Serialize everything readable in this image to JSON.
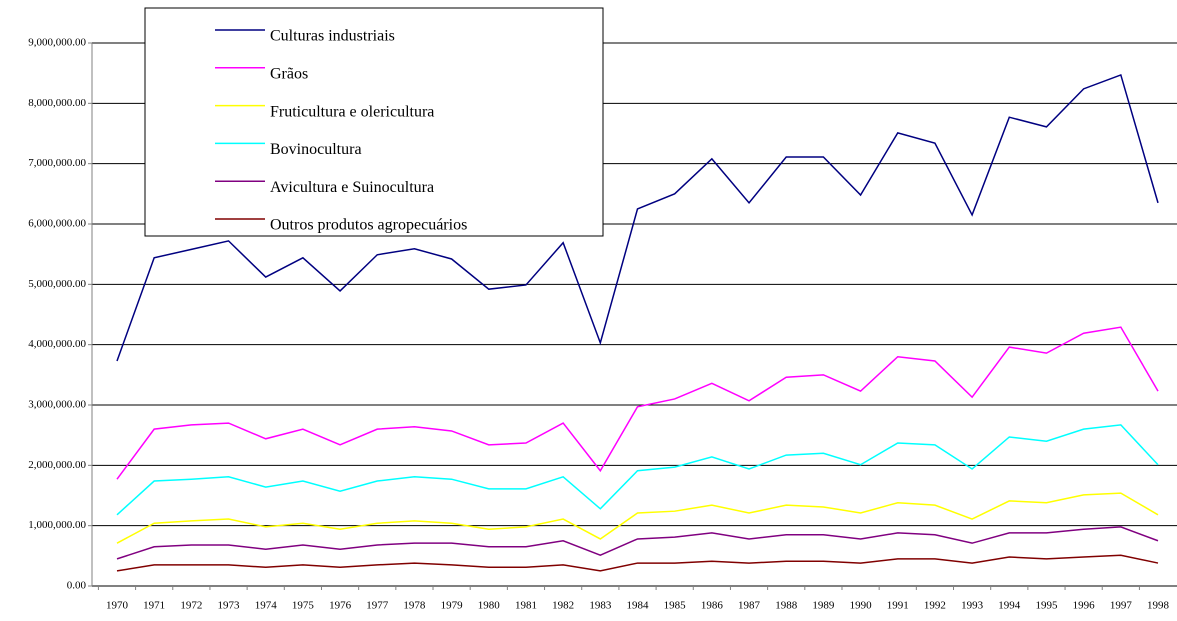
{
  "chart_data": {
    "type": "line",
    "categories": [
      "1970",
      "1971",
      "1972",
      "1973",
      "1974",
      "1975",
      "1976",
      "1977",
      "1978",
      "1979",
      "1980",
      "1981",
      "1982",
      "1983",
      "1984",
      "1985",
      "1986",
      "1987",
      "1988",
      "1989",
      "1990",
      "1991",
      "1992",
      "1993",
      "1994",
      "1995",
      "1996",
      "1997",
      "1998"
    ],
    "series": [
      {
        "name": "Culturas industriais",
        "color": "#000080",
        "values": [
          3730000,
          5440000,
          5580000,
          5720000,
          5120000,
          5440000,
          4890000,
          5490000,
          5590000,
          5420000,
          4920000,
          4990000,
          5690000,
          4030000,
          6250000,
          6500000,
          7080000,
          6350000,
          7110000,
          7110000,
          6480000,
          7510000,
          7340000,
          6150000,
          7770000,
          7610000,
          8240000,
          8470000,
          6350000
        ]
      },
      {
        "name": "Grãos",
        "color": "#ff00ff",
        "values": [
          1770000,
          2600000,
          2670000,
          2700000,
          2440000,
          2600000,
          2340000,
          2600000,
          2640000,
          2570000,
          2340000,
          2370000,
          2700000,
          1910000,
          2970000,
          3100000,
          3360000,
          3070000,
          3460000,
          3500000,
          3230000,
          3800000,
          3730000,
          3130000,
          3960000,
          3860000,
          4190000,
          4290000,
          3230000
        ]
      },
      {
        "name": "Fruticultura e olericultura",
        "color": "#ffff00",
        "values": [
          710000,
          1040000,
          1080000,
          1110000,
          980000,
          1040000,
          940000,
          1040000,
          1080000,
          1040000,
          940000,
          980000,
          1110000,
          780000,
          1210000,
          1240000,
          1340000,
          1210000,
          1340000,
          1310000,
          1210000,
          1380000,
          1340000,
          1110000,
          1410000,
          1380000,
          1510000,
          1540000,
          1180000
        ]
      },
      {
        "name": "Bovinocultura",
        "color": "#00ffff",
        "values": [
          1180000,
          1740000,
          1770000,
          1810000,
          1640000,
          1740000,
          1570000,
          1740000,
          1810000,
          1770000,
          1610000,
          1610000,
          1810000,
          1280000,
          1910000,
          1970000,
          2140000,
          1940000,
          2170000,
          2200000,
          2010000,
          2370000,
          2340000,
          1940000,
          2470000,
          2400000,
          2600000,
          2670000,
          2010000
        ]
      },
      {
        "name": "Avicultura e Suinocultura",
        "color": "#800080",
        "values": [
          450000,
          650000,
          680000,
          680000,
          610000,
          680000,
          610000,
          680000,
          710000,
          710000,
          650000,
          650000,
          750000,
          510000,
          780000,
          810000,
          880000,
          780000,
          850000,
          850000,
          780000,
          880000,
          850000,
          710000,
          880000,
          880000,
          940000,
          980000,
          750000
        ]
      },
      {
        "name": "Outros produtos agropecuários",
        "color": "#800000",
        "values": [
          250000,
          350000,
          350000,
          350000,
          310000,
          350000,
          310000,
          350000,
          380000,
          350000,
          310000,
          310000,
          350000,
          250000,
          380000,
          380000,
          410000,
          380000,
          410000,
          410000,
          380000,
          450000,
          450000,
          380000,
          480000,
          450000,
          480000,
          510000,
          380000
        ]
      }
    ],
    "ylim": [
      0,
      9000000
    ],
    "yticks": [
      {
        "value": 0,
        "label": "0.00"
      },
      {
        "value": 1000000,
        "label": "1,000,000.00"
      },
      {
        "value": 2000000,
        "label": "2,000,000.00"
      },
      {
        "value": 3000000,
        "label": "3,000,000.00"
      },
      {
        "value": 4000000,
        "label": "4,000,000.00"
      },
      {
        "value": 5000000,
        "label": "5,000,000.00"
      },
      {
        "value": 6000000,
        "label": "6,000,000.00"
      },
      {
        "value": 7000000,
        "label": "7,000,000.00"
      },
      {
        "value": 8000000,
        "label": "8,000,000.00"
      },
      {
        "value": 9000000,
        "label": "9,000,000.00"
      }
    ],
    "grid": true,
    "legend": "top-left"
  }
}
